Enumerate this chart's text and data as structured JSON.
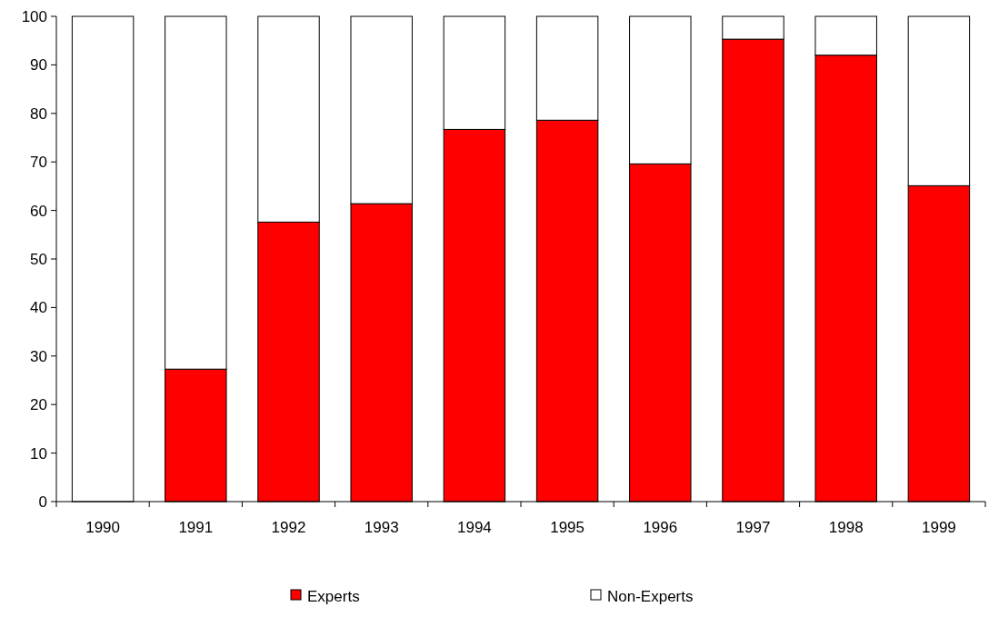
{
  "chart_data": {
    "type": "bar",
    "stacked": true,
    "categories": [
      "1990",
      "1991",
      "1992",
      "1993",
      "1994",
      "1995",
      "1996",
      "1997",
      "1998",
      "1999"
    ],
    "series": [
      {
        "name": "Experts",
        "color": "#ff0000",
        "values": [
          0,
          27.3,
          57.6,
          61.4,
          76.7,
          78.6,
          69.6,
          95.3,
          92.0,
          65.1
        ]
      },
      {
        "name": "Non-Experts",
        "color": "#ffffff",
        "values": [
          100,
          72.7,
          42.4,
          38.6,
          23.3,
          21.4,
          30.4,
          4.7,
          8.0,
          34.9
        ]
      }
    ],
    "ylim": [
      0,
      100
    ],
    "yticks": [
      0,
      10,
      20,
      30,
      40,
      50,
      60,
      70,
      80,
      90,
      100
    ],
    "grid": false,
    "legend": "bottom"
  }
}
